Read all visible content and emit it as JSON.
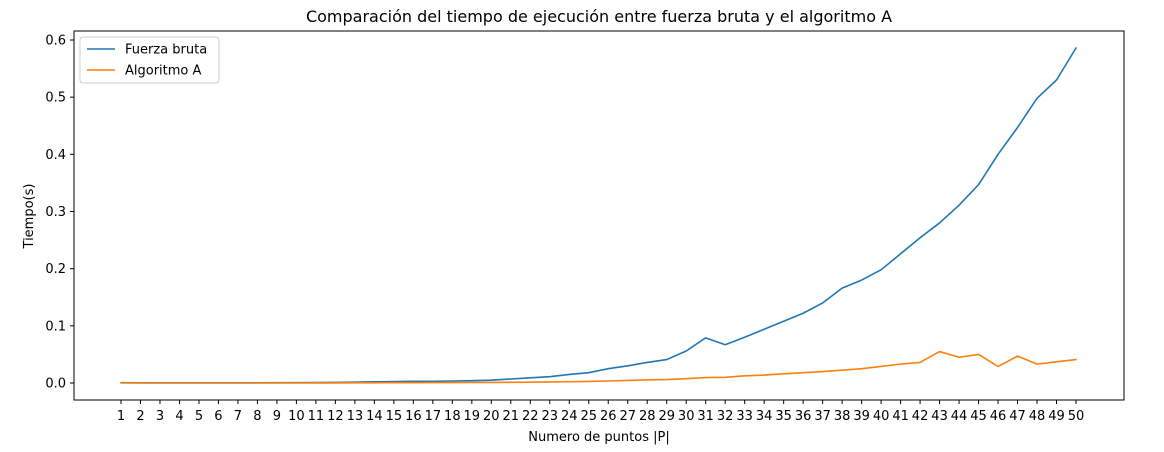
{
  "chart_data": {
    "type": "line",
    "title": "Comparación del tiempo de ejecución entre fuerza bruta y el algoritmo A",
    "xlabel": "Numero de puntos |P|",
    "ylabel": "Tiempo(s)",
    "x": [
      1,
      2,
      3,
      4,
      5,
      6,
      7,
      8,
      9,
      10,
      11,
      12,
      13,
      14,
      15,
      16,
      17,
      18,
      19,
      20,
      21,
      22,
      23,
      24,
      25,
      26,
      27,
      28,
      29,
      30,
      31,
      32,
      33,
      34,
      35,
      36,
      37,
      38,
      39,
      40,
      41,
      42,
      43,
      44,
      45,
      46,
      47,
      48,
      49,
      50
    ],
    "xlim": [
      1,
      50
    ],
    "ylim": [
      0,
      0.6
    ],
    "yticks": [
      0.0,
      0.1,
      0.2,
      0.3,
      0.4,
      0.5,
      0.6
    ],
    "ytick_labels": [
      "0.0",
      "0.1",
      "0.2",
      "0.3",
      "0.4",
      "0.5",
      "0.6"
    ],
    "grid": false,
    "legend_position": "top-left",
    "series": [
      {
        "name": "Fuerza bruta",
        "color": "#1f77b4",
        "values": [
          0.0005,
          0.0003,
          0.0003,
          0.0003,
          0.0003,
          0.0003,
          0.0003,
          0.0004,
          0.0005,
          0.0006,
          0.0008,
          0.001,
          0.0015,
          0.002,
          0.0025,
          0.003,
          0.003,
          0.0035,
          0.004,
          0.005,
          0.007,
          0.009,
          0.011,
          0.015,
          0.018,
          0.025,
          0.03,
          0.036,
          0.041,
          0.056,
          0.079,
          0.067,
          0.08,
          0.094,
          0.108,
          0.122,
          0.14,
          0.166,
          0.18,
          0.198,
          0.226,
          0.254,
          0.28,
          0.311,
          0.347,
          0.4,
          0.447,
          0.498,
          0.53,
          0.586
        ]
      },
      {
        "name": "Algoritmo A",
        "color": "#ff7f0e",
        "values": [
          0.0,
          0.0,
          0.0,
          0.0,
          0.0,
          0.0,
          0.0,
          0.0,
          0.0,
          0.0,
          0.0001,
          0.0002,
          0.0003,
          0.0004,
          0.0005,
          0.0006,
          0.0007,
          0.0008,
          0.0009,
          0.001,
          0.0012,
          0.0015,
          0.0018,
          0.0022,
          0.0028,
          0.0035,
          0.0045,
          0.0055,
          0.006,
          0.0075,
          0.0095,
          0.01,
          0.0125,
          0.0138,
          0.016,
          0.018,
          0.02,
          0.0225,
          0.025,
          0.029,
          0.033,
          0.036,
          0.055,
          0.045,
          0.05,
          0.029,
          0.047,
          0.033,
          0.037,
          0.041
        ]
      }
    ]
  }
}
